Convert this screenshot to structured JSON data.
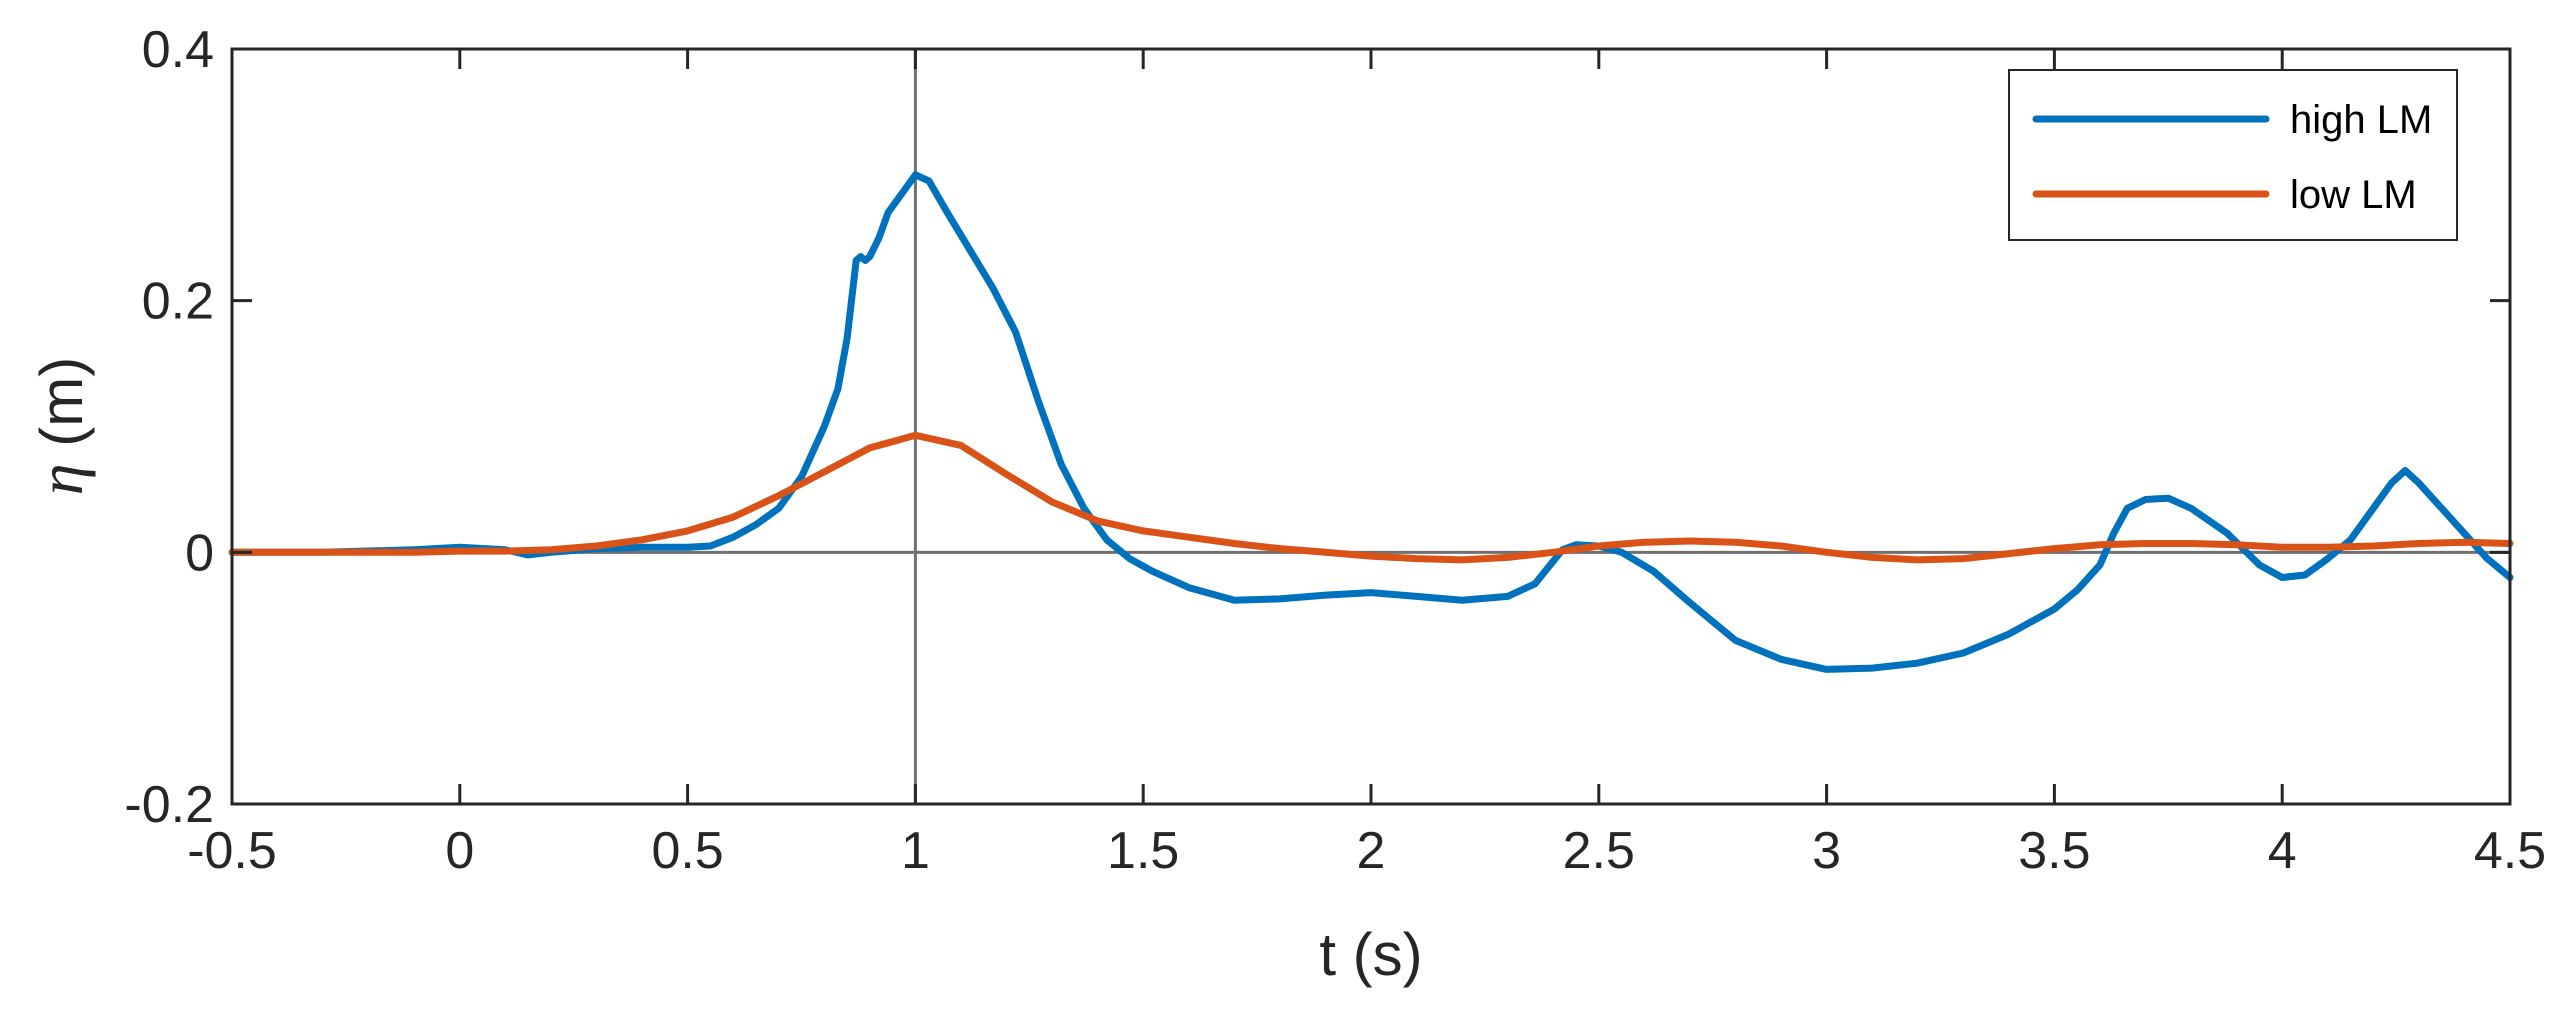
{
  "chart_data": {
    "type": "line",
    "title": "",
    "xlabel": "t (s)",
    "ylabel_symbol": "η",
    "ylabel_unit": " (m)",
    "xlim": [
      -0.5,
      4.5
    ],
    "ylim": [
      -0.2,
      0.4
    ],
    "xticks": [
      -0.5,
      0,
      0.5,
      1,
      1.5,
      2,
      2.5,
      3,
      3.5,
      4,
      4.5
    ],
    "xtick_labels": [
      "-0.5",
      "0",
      "0.5",
      "1",
      "1.5",
      "2",
      "2.5",
      "3",
      "3.5",
      "4",
      "4.5"
    ],
    "yticks": [
      -0.2,
      0,
      0.2,
      0.4
    ],
    "ytick_labels": [
      "-0.2",
      "0",
      "0.2",
      "0.4"
    ],
    "reference_lines": {
      "x": 1,
      "y": 0
    },
    "grid": false,
    "legend_position": "top-right",
    "series": [
      {
        "name": "high LM",
        "color": "#0072BD",
        "x": [
          -0.5,
          -0.3,
          -0.1,
          0,
          0.1,
          0.15,
          0.2,
          0.3,
          0.4,
          0.5,
          0.55,
          0.6,
          0.65,
          0.7,
          0.75,
          0.8,
          0.83,
          0.85,
          0.87,
          0.88,
          0.89,
          0.9,
          0.92,
          0.94,
          0.96,
          0.98,
          1.0,
          1.03,
          1.07,
          1.12,
          1.17,
          1.22,
          1.27,
          1.32,
          1.37,
          1.42,
          1.47,
          1.52,
          1.6,
          1.7,
          1.8,
          1.9,
          2.0,
          2.1,
          2.2,
          2.3,
          2.36,
          2.42,
          2.45,
          2.5,
          2.55,
          2.62,
          2.7,
          2.8,
          2.9,
          3.0,
          3.1,
          3.2,
          3.3,
          3.4,
          3.5,
          3.55,
          3.6,
          3.63,
          3.66,
          3.7,
          3.75,
          3.8,
          3.88,
          3.95,
          4.0,
          4.05,
          4.1,
          4.15,
          4.2,
          4.24,
          4.27,
          4.3,
          4.35,
          4.4,
          4.45,
          4.5
        ],
        "y": [
          0,
          0,
          0.002,
          0.004,
          0.002,
          -0.002,
          0,
          0.003,
          0.004,
          0.004,
          0.005,
          0.012,
          0.022,
          0.035,
          0.06,
          0.1,
          0.13,
          0.17,
          0.232,
          0.235,
          0.232,
          0.235,
          0.25,
          0.27,
          0.28,
          0.29,
          0.3,
          0.295,
          0.27,
          0.24,
          0.21,
          0.175,
          0.12,
          0.07,
          0.035,
          0.01,
          -0.005,
          -0.015,
          -0.028,
          -0.038,
          -0.037,
          -0.034,
          -0.032,
          -0.035,
          -0.038,
          -0.035,
          -0.025,
          0.002,
          0.006,
          0.005,
          0.0,
          -0.015,
          -0.04,
          -0.07,
          -0.085,
          -0.093,
          -0.092,
          -0.088,
          -0.08,
          -0.065,
          -0.045,
          -0.03,
          -0.01,
          0.015,
          0.035,
          0.042,
          0.043,
          0.035,
          0.015,
          -0.01,
          -0.02,
          -0.018,
          -0.005,
          0.01,
          0.035,
          0.055,
          0.065,
          0.055,
          0.035,
          0.015,
          -0.005,
          -0.02
        ]
      },
      {
        "name": "low LM",
        "color": "#D95319",
        "x": [
          -0.5,
          -0.3,
          -0.1,
          0,
          0.1,
          0.2,
          0.3,
          0.4,
          0.5,
          0.6,
          0.7,
          0.8,
          0.9,
          1.0,
          1.1,
          1.2,
          1.3,
          1.4,
          1.5,
          1.6,
          1.7,
          1.8,
          1.9,
          2.0,
          2.1,
          2.2,
          2.3,
          2.4,
          2.5,
          2.6,
          2.7,
          2.8,
          2.9,
          3.0,
          3.1,
          3.2,
          3.3,
          3.4,
          3.5,
          3.6,
          3.7,
          3.8,
          3.9,
          4.0,
          4.1,
          4.2,
          4.3,
          4.4,
          4.5
        ],
        "y": [
          0,
          0,
          0,
          0.001,
          0.001,
          0.002,
          0.005,
          0.01,
          0.017,
          0.028,
          0.045,
          0.064,
          0.083,
          0.093,
          0.085,
          0.062,
          0.04,
          0.025,
          0.017,
          0.012,
          0.007,
          0.003,
          0,
          -0.003,
          -0.005,
          -0.006,
          -0.004,
          0.0,
          0.005,
          0.008,
          0.009,
          0.008,
          0.005,
          0.0,
          -0.004,
          -0.006,
          -0.005,
          -0.001,
          0.003,
          0.006,
          0.007,
          0.007,
          0.006,
          0.004,
          0.004,
          0.005,
          0.007,
          0.008,
          0.007
        ]
      }
    ]
  }
}
